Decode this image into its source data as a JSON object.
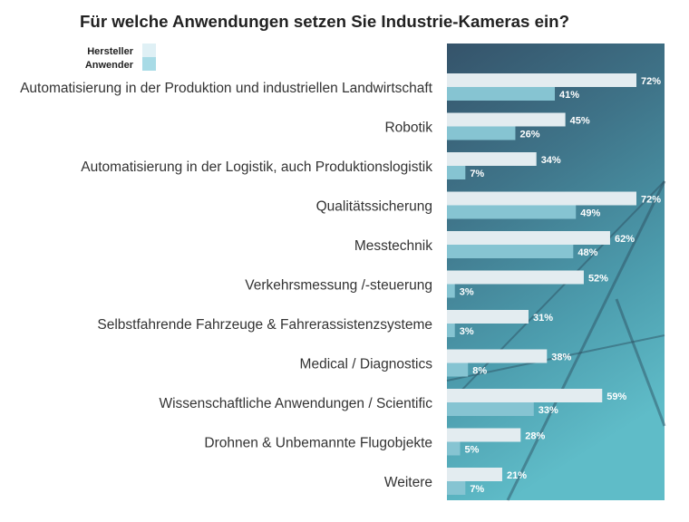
{
  "chart_data": {
    "type": "bar",
    "orientation": "horizontal",
    "title": "Für welche Anwendungen setzen Sie Industrie-Kameras ein?",
    "categories": [
      "Automatisierung in der Produktion und industriellen Landwirtschaft",
      "Robotik",
      "Automatisierung in der Logistik, auch Produktionslogistik",
      "Qualitätssicherung",
      "Messtechnik",
      "Verkehrsmessung /-steuerung",
      "Selbstfahrende Fahrzeuge & Fahrerassistenzsysteme",
      "Medical / Diagnostics",
      "Wissenschaftliche Anwendungen / Scientific",
      "Drohnen & Unbemannte Flugobjekte",
      "Weitere"
    ],
    "series": [
      {
        "name": "Hersteller",
        "color": "#e3ecf0",
        "values": [
          72,
          45,
          34,
          72,
          62,
          52,
          31,
          38,
          59,
          28,
          21
        ]
      },
      {
        "name": "Anwender",
        "color": "#86c4d2",
        "values": [
          41,
          26,
          7,
          49,
          48,
          3,
          3,
          8,
          33,
          5,
          7
        ]
      }
    ],
    "value_suffix": "%",
    "legend_placement": "top-left",
    "legend_colors": [
      "#dff0f5",
      "#a8dbe6"
    ],
    "grid": false,
    "xlim": [
      0,
      82
    ]
  }
}
